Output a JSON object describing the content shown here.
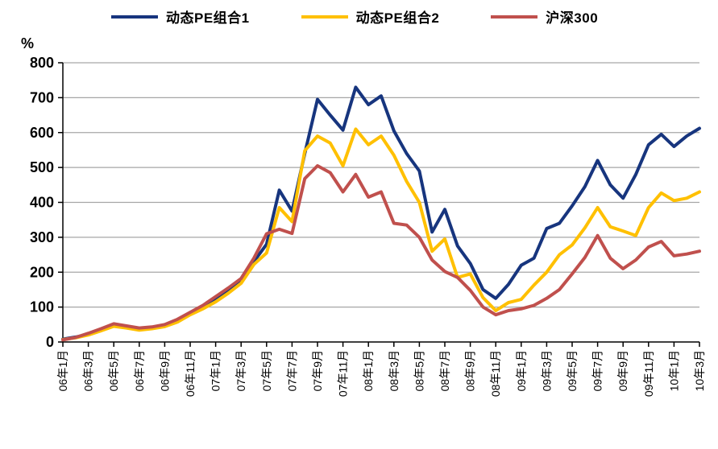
{
  "figure": {
    "ylabel": "%"
  },
  "legend": [
    {
      "label": "动态PE组合1",
      "color": "#17357E"
    },
    {
      "label": "动态PE组合2",
      "color": "#FFC000"
    },
    {
      "label": "沪深300",
      "color": "#C0504D"
    }
  ],
  "chart_data": {
    "type": "line",
    "title": "",
    "xlabel": "",
    "ylabel": "%",
    "ylim": [
      0,
      800
    ],
    "y_ticks": [
      0,
      100,
      200,
      300,
      400,
      500,
      600,
      700,
      800
    ],
    "grid": "horizontal",
    "grid_color": "#A6A6A6",
    "axis_color": "#000000",
    "legend_position": "top",
    "x_unit": "month",
    "points_per_x_tick": 2,
    "x_tick_labels": [
      "06年1月",
      "06年3月",
      "06年5月",
      "06年7月",
      "06年9月",
      "06年11月",
      "07年1月",
      "07年3月",
      "07年5月",
      "07年7月",
      "07年9月",
      "07年11月",
      "08年1月",
      "08年3月",
      "08年5月",
      "08年7月",
      "08年9月",
      "08年11月",
      "09年1月",
      "09年3月",
      "09年5月",
      "09年7月",
      "09年9月",
      "09年11月",
      "10年1月",
      "10年3月"
    ],
    "series": [
      {
        "name": "动态PE组合1",
        "color": "#17357E",
        "values": [
          8,
          14,
          22,
          35,
          48,
          43,
          36,
          40,
          47,
          60,
          82,
          100,
          122,
          148,
          175,
          230,
          280,
          435,
          375,
          540,
          695,
          650,
          607,
          730,
          680,
          705,
          605,
          540,
          490,
          315,
          380,
          275,
          225,
          150,
          125,
          165,
          220,
          240,
          325,
          340,
          390,
          445,
          520,
          450,
          412,
          480,
          565,
          595,
          560,
          590,
          612
        ]
      },
      {
        "name": "动态PE组合2",
        "color": "#FFC000",
        "values": [
          7,
          12,
          20,
          32,
          45,
          40,
          34,
          38,
          44,
          57,
          78,
          95,
          115,
          140,
          168,
          222,
          255,
          385,
          345,
          548,
          590,
          570,
          505,
          610,
          565,
          590,
          535,
          460,
          400,
          260,
          295,
          185,
          195,
          127,
          90,
          113,
          122,
          163,
          200,
          250,
          278,
          327,
          385,
          330,
          318,
          305,
          385,
          427,
          405,
          412,
          430
        ]
      },
      {
        "name": "沪深300",
        "color": "#C0504D",
        "values": [
          6,
          13,
          25,
          38,
          52,
          46,
          40,
          43,
          50,
          65,
          85,
          105,
          130,
          155,
          182,
          240,
          310,
          323,
          311,
          468,
          505,
          485,
          430,
          480,
          415,
          430,
          340,
          335,
          300,
          235,
          202,
          185,
          148,
          100,
          78,
          90,
          95,
          105,
          125,
          150,
          195,
          242,
          305,
          240,
          210,
          235,
          272,
          288,
          247,
          252,
          260
        ]
      }
    ]
  }
}
